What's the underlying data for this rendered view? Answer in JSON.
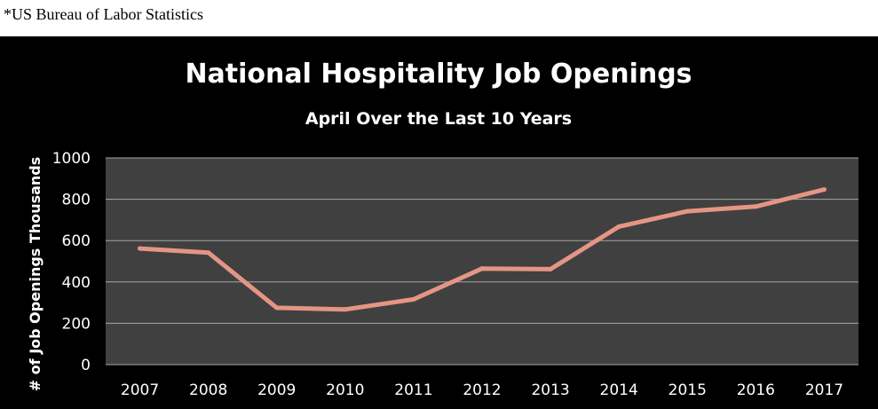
{
  "source_note": "*US Bureau of Labor Statistics",
  "chart_data": {
    "type": "line",
    "title": "National Hospitality Job Openings",
    "subtitle": "April Over the Last 10 Years",
    "xlabel": "",
    "ylabel": "# of Job Openings Thousands",
    "categories": [
      "2007",
      "2008",
      "2009",
      "2010",
      "2011",
      "2012",
      "2013",
      "2014",
      "2015",
      "2016",
      "2017"
    ],
    "series": [
      {
        "values": [
          562,
          542,
          275,
          267,
          316,
          465,
          462,
          668,
          742,
          765,
          847
        ],
        "color": "#E59584"
      }
    ],
    "ylim": [
      0,
      1000
    ],
    "yticks": [
      0,
      200,
      400,
      600,
      800,
      1000
    ],
    "grid": true,
    "legend": "none",
    "colors": {
      "page_background": "#000000",
      "plot_background": "#404040",
      "gridline": "#a6a6a6",
      "text": "#ffffff"
    }
  }
}
